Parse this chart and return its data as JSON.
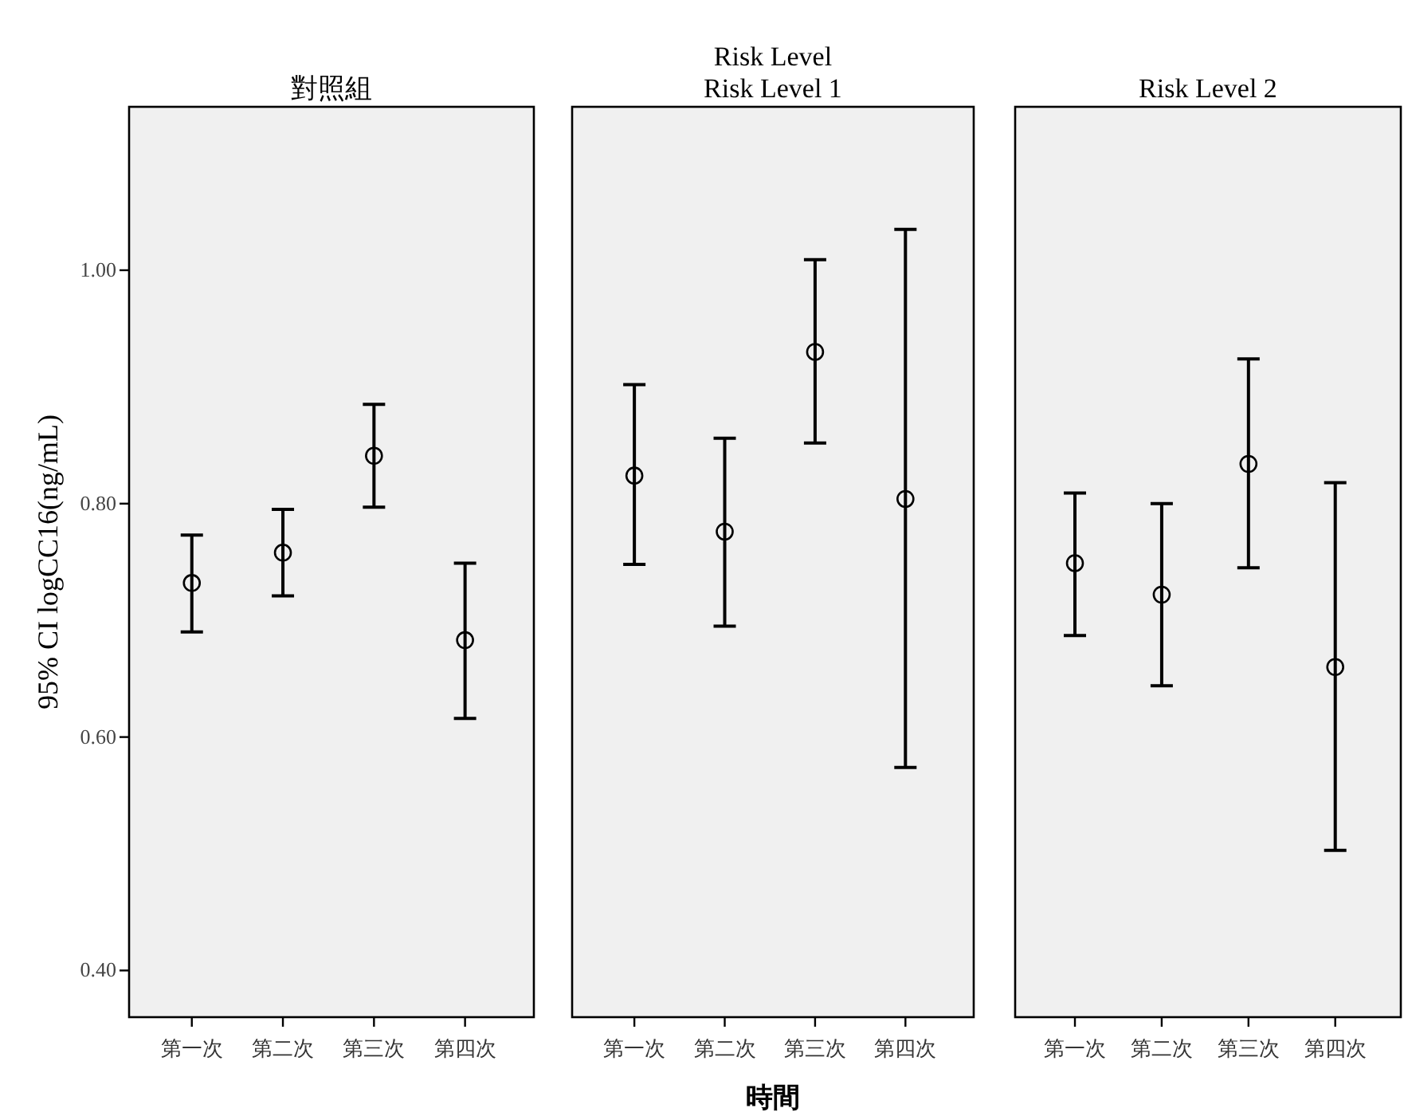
{
  "chart_data": [
    {
      "type": "scatter",
      "title": "對照組",
      "ylabel": "95% CI logCC16(ng/mL)",
      "categories": [
        "第一次",
        "第二次",
        "第三次",
        "第四次"
      ],
      "marker": "circle",
      "ylim": [
        0.36,
        1.14
      ],
      "yticks": [
        {
          "value": 0.4,
          "label": "0.40"
        },
        {
          "value": 0.6,
          "label": "0.60"
        },
        {
          "value": 0.8,
          "label": "0.80"
        },
        {
          "value": 1.0,
          "label": "1.00"
        }
      ],
      "series": [
        {
          "color": "#000000",
          "values": [
            0.732,
            0.758,
            0.841,
            0.683
          ],
          "errors": [
            [
              0.69,
              0.773
            ],
            [
              0.721,
              0.795
            ],
            [
              0.797,
              0.885
            ],
            [
              0.616,
              0.749
            ]
          ]
        }
      ]
    },
    {
      "type": "scatter",
      "title": "Risk Level 1",
      "annotations": [
        "Risk Level"
      ],
      "xlabel": "時間",
      "categories": [
        "第一次",
        "第二次",
        "第三次",
        "第四次"
      ],
      "marker": "circle",
      "ylim": [
        0.36,
        1.14
      ],
      "tick_labels": "x",
      "series": [
        {
          "color": "#000000",
          "values": [
            0.824,
            0.776,
            0.93,
            0.804
          ],
          "errors": [
            [
              0.748,
              0.902
            ],
            [
              0.695,
              0.856
            ],
            [
              0.852,
              1.009
            ],
            [
              0.574,
              1.035
            ]
          ]
        }
      ]
    },
    {
      "type": "scatter",
      "title": "Risk Level 2",
      "categories": [
        "第一次",
        "第二次",
        "第三次",
        "第四次"
      ],
      "marker": "circle",
      "ylim": [
        0.36,
        1.14
      ],
      "tick_labels": "x",
      "series": [
        {
          "color": "#000000",
          "values": [
            0.749,
            0.722,
            0.834,
            0.66
          ],
          "errors": [
            [
              0.687,
              0.809
            ],
            [
              0.644,
              0.8
            ],
            [
              0.745,
              0.924
            ],
            [
              0.503,
              0.818
            ]
          ]
        }
      ]
    }
  ]
}
